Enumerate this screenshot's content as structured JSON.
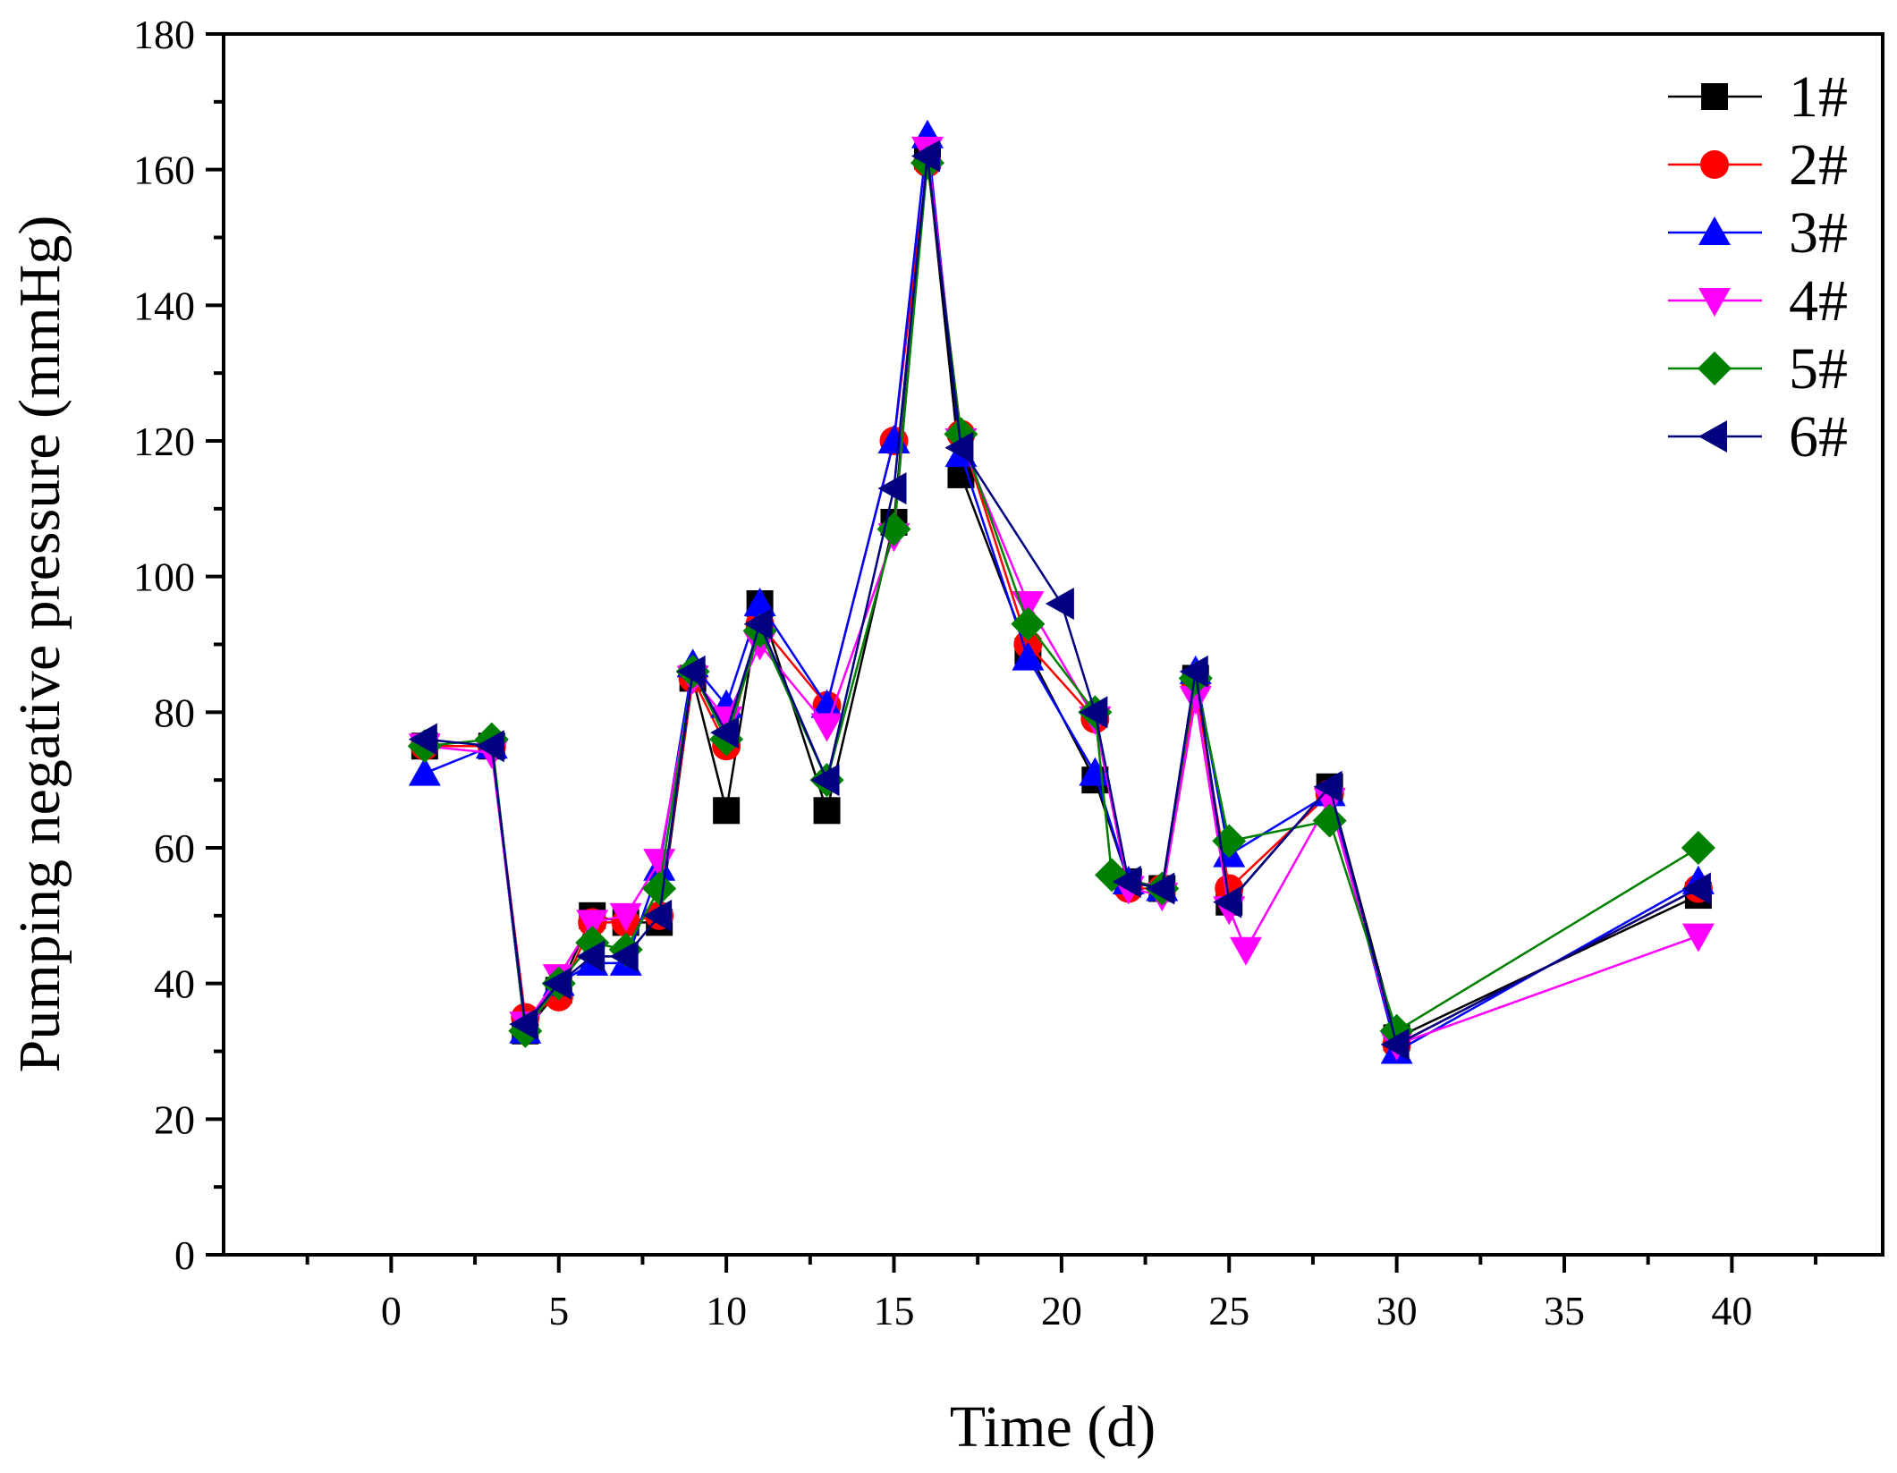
{
  "chart_data": {
    "type": "line",
    "title": "",
    "xlabel": "Time (d)",
    "ylabel": "Pumping negative pressure (mmHg)",
    "xlim": [
      -5,
      44.5
    ],
    "ylim": [
      0,
      180
    ],
    "xticks": [
      0,
      5,
      10,
      15,
      20,
      25,
      30,
      35,
      40
    ],
    "yticks": [
      0,
      20,
      40,
      60,
      80,
      100,
      120,
      140,
      160,
      180
    ],
    "xtick_labels": [
      "0",
      "5",
      "10",
      "15",
      "20",
      "25",
      "30",
      "35",
      "40"
    ],
    "ytick_labels": [
      "0",
      "20",
      "40",
      "60",
      "80",
      "100",
      "120",
      "140",
      "160",
      "180"
    ],
    "grid": false,
    "legend_position": "top-right",
    "series": [
      {
        "name": "1#",
        "label": "1#",
        "color": "#000000",
        "marker": "square",
        "x": [
          1,
          3,
          4,
          5,
          6,
          7,
          8,
          9,
          10,
          11,
          13,
          15,
          16,
          17,
          19,
          21,
          22,
          23,
          24,
          25,
          28,
          30,
          39
        ],
        "y": [
          75,
          75,
          33,
          39,
          50,
          49,
          49,
          85,
          65.5,
          96,
          65.5,
          108,
          162,
          115,
          89,
          70,
          55,
          54,
          85,
          52,
          69,
          32,
          53
        ]
      },
      {
        "name": "2#",
        "label": "2#",
        "color": "#ff0000",
        "marker": "circle",
        "x": [
          1,
          3,
          4,
          5,
          6,
          7,
          8,
          9,
          10,
          11,
          13,
          15,
          16,
          17,
          19,
          21,
          22,
          23,
          24,
          25,
          28,
          30,
          39
        ],
        "y": [
          75,
          75,
          35,
          38,
          49,
          49,
          50,
          85,
          75,
          93,
          81,
          120,
          161,
          121,
          90,
          79,
          54,
          54,
          84,
          54,
          68,
          31,
          54
        ]
      },
      {
        "name": "3#",
        "label": "3#",
        "color": "#0000ff",
        "marker": "triangle-up",
        "x": [
          1,
          3,
          4,
          5,
          6,
          7,
          8,
          9,
          10,
          11,
          13,
          15,
          16,
          17,
          19,
          21,
          22,
          23,
          24,
          25,
          28,
          30,
          39
        ],
        "y": [
          71,
          75,
          33,
          40,
          43,
          43,
          57,
          87,
          81,
          96,
          81,
          120,
          165,
          118,
          88,
          71,
          55,
          54,
          86,
          59,
          68,
          30,
          55
        ]
      },
      {
        "name": "4#",
        "label": "4#",
        "color": "#ff00ff",
        "marker": "triangle-down",
        "x": [
          1,
          3,
          4,
          5,
          6,
          7,
          8,
          9,
          10,
          11,
          13,
          15,
          16,
          17,
          19,
          21,
          22,
          23,
          24,
          25,
          25.5,
          28,
          30,
          39
        ],
        "y": [
          75,
          74,
          34,
          41,
          49,
          50,
          58,
          85,
          79,
          90,
          78,
          106,
          163,
          120,
          96,
          79,
          54,
          53,
          82,
          51,
          45,
          67,
          31,
          47
        ]
      },
      {
        "name": "5#",
        "label": "5#",
        "color": "#008000",
        "marker": "diamond",
        "x": [
          1,
          3,
          4,
          5,
          6,
          7,
          8,
          9,
          10,
          11,
          13,
          15,
          16,
          17,
          19,
          21,
          21.5,
          23,
          24,
          25,
          28,
          30,
          39
        ],
        "y": [
          75,
          76,
          33,
          40,
          46,
          45,
          54,
          86,
          76,
          92,
          70,
          107,
          161,
          121,
          93,
          80,
          56,
          54,
          85,
          61,
          64,
          33,
          60
        ]
      },
      {
        "name": "6#",
        "label": "6#",
        "color": "#000080",
        "marker": "triangle-left",
        "x": [
          1,
          3,
          4,
          5,
          6,
          7,
          8,
          9,
          10,
          11,
          13,
          15,
          16,
          17,
          20,
          21,
          22,
          23,
          24,
          25,
          28,
          30,
          39
        ],
        "y": [
          76,
          75,
          34,
          40,
          44,
          44,
          50,
          86,
          77,
          93,
          70,
          113,
          162,
          119,
          96,
          80,
          55,
          54,
          86,
          52,
          69,
          31,
          54
        ]
      }
    ]
  }
}
